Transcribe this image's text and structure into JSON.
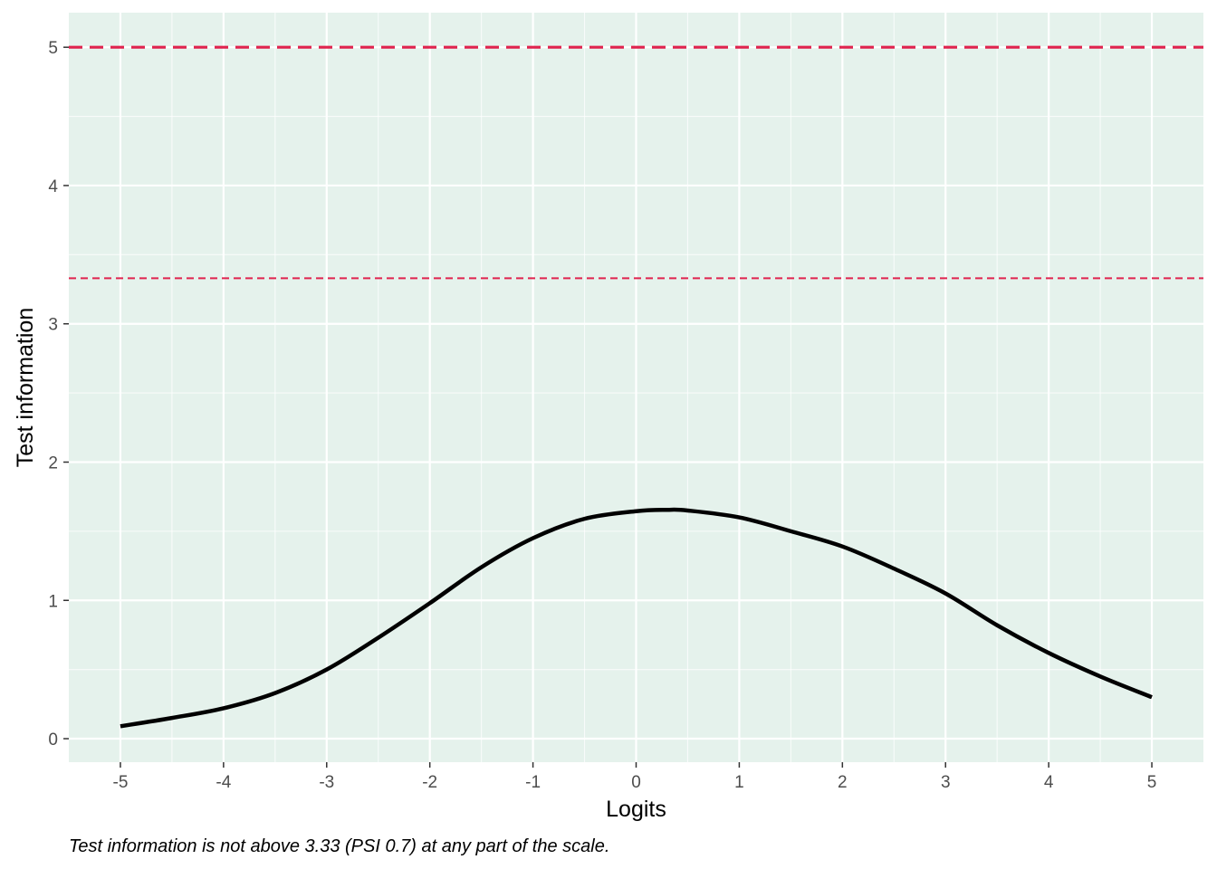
{
  "chart_data": {
    "type": "line",
    "xlabel": "Logits",
    "ylabel": "Test information",
    "caption": "Test information is not above 3.33 (PSI 0.7) at any part of the scale.",
    "xlim": [
      -5.5,
      5.5
    ],
    "ylim": [
      -0.17,
      5.25
    ],
    "x_ticks": [
      -5,
      -4,
      -3,
      -2,
      -1,
      0,
      1,
      2,
      3,
      4,
      5
    ],
    "x_tick_labels": [
      "-5",
      "-4",
      "-3",
      "-2",
      "-1",
      "0",
      "1",
      "2",
      "3",
      "4",
      "5"
    ],
    "y_ticks": [
      0,
      1,
      2,
      3,
      4,
      5
    ],
    "y_tick_labels": [
      "0",
      "1",
      "2",
      "3",
      "4",
      "5"
    ],
    "grid": true,
    "panel_background": "#e5f2ec",
    "series": [
      {
        "color": "#000000",
        "x": [
          -5.0,
          -4.5,
          -4.0,
          -3.5,
          -3.0,
          -2.5,
          -2.0,
          -1.5,
          -1.0,
          -0.5,
          0.0,
          0.3,
          0.5,
          1.0,
          1.5,
          2.0,
          2.5,
          3.0,
          3.5,
          4.0,
          4.5,
          5.0
        ],
        "y": [
          0.09,
          0.15,
          0.22,
          0.33,
          0.5,
          0.73,
          0.98,
          1.24,
          1.45,
          1.59,
          1.645,
          1.655,
          1.65,
          1.6,
          1.5,
          1.39,
          1.23,
          1.05,
          0.82,
          0.62,
          0.45,
          0.3
        ]
      }
    ],
    "reference_lines": [
      {
        "y": 5,
        "style": "dashed",
        "weight": "thick",
        "color": "#e0234e"
      },
      {
        "y": 3.33,
        "style": "dashed",
        "weight": "thin",
        "color": "#e0234e"
      }
    ]
  }
}
